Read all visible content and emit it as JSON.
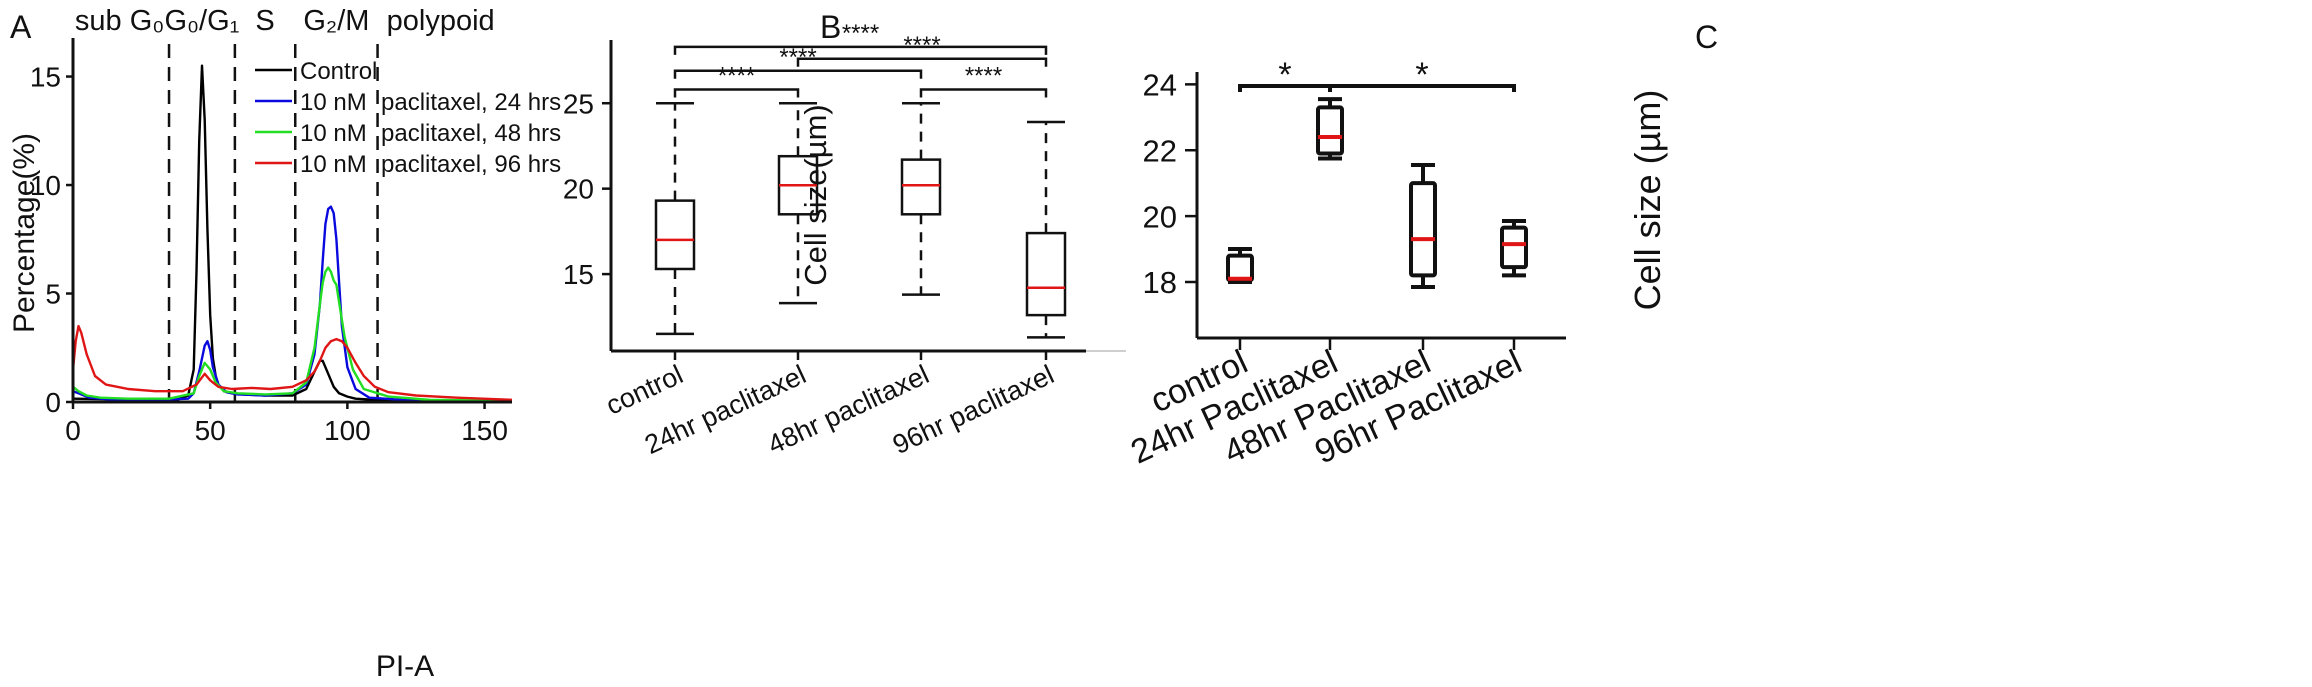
{
  "figure": {
    "panels": [
      {
        "letter": "A"
      },
      {
        "letter": "B"
      },
      {
        "letter": "C"
      }
    ]
  },
  "chart_data": [
    {
      "id": "A",
      "type": "line",
      "title": "",
      "xlabel": "PI-A",
      "ylabel": "Percentage(%)",
      "xlim": [
        0,
        160
      ],
      "ylim": [
        0,
        16.5
      ],
      "xticks": [
        0,
        50,
        100,
        150
      ],
      "yticks": [
        0,
        5,
        10,
        15
      ],
      "grid": false,
      "legend_position": "top-center",
      "phase_boundaries": [
        35,
        59,
        81,
        111
      ],
      "phases": [
        {
          "label": "sub G₀",
          "center": 17
        },
        {
          "label": "G₀/G₁",
          "center": 47
        },
        {
          "label": "S",
          "center": 70
        },
        {
          "label": "G₂/M",
          "center": 96
        },
        {
          "label": "polypoid",
          "center": 134
        }
      ],
      "series": [
        {
          "name": "Control",
          "color": "#000000",
          "x": [
            0,
            30,
            38,
            42,
            44,
            45,
            46,
            47,
            48,
            49,
            50,
            51,
            52,
            53,
            55,
            58,
            62,
            70,
            80,
            85,
            88,
            90,
            91,
            93,
            95,
            97,
            100,
            103,
            110,
            130,
            160
          ],
          "values": [
            0.15,
            0.1,
            0.1,
            0.3,
            1.5,
            6,
            12,
            15.5,
            13,
            8,
            4,
            2,
            1.2,
            0.8,
            0.5,
            0.4,
            0.35,
            0.3,
            0.3,
            0.6,
            1.4,
            1.9,
            1.9,
            1.3,
            0.7,
            0.4,
            0.25,
            0.15,
            0.1,
            0.05,
            0.05
          ]
        },
        {
          "name": "10 nM",
          "label": "paclitaxel, 24 hrs",
          "color": "#0a0adf",
          "x": [
            0,
            2,
            6,
            15,
            30,
            42,
            44,
            46,
            48,
            49,
            50,
            51,
            53,
            56,
            60,
            70,
            80,
            85,
            88,
            90,
            91,
            92,
            93,
            94,
            95,
            96,
            97,
            98,
            100,
            103,
            108,
            120,
            140,
            160
          ],
          "values": [
            0.5,
            0.4,
            0.2,
            0.1,
            0.1,
            0.15,
            0.4,
            1.4,
            2.6,
            2.8,
            2.4,
            1.6,
            0.8,
            0.45,
            0.35,
            0.3,
            0.4,
            0.8,
            2.2,
            4.5,
            6.5,
            8.2,
            8.9,
            9.0,
            8.7,
            7.5,
            5.5,
            3.5,
            1.6,
            0.6,
            0.2,
            0.1,
            0.05,
            0.05
          ]
        },
        {
          "name": "10 nM",
          "label": "paclitaxel, 48 hrs",
          "color": "#22dd22",
          "x": [
            0,
            2,
            5,
            10,
            20,
            35,
            44,
            46,
            48,
            50,
            52,
            55,
            60,
            70,
            80,
            85,
            88,
            90,
            91,
            92,
            93,
            94,
            95,
            96,
            97,
            99,
            102,
            106,
            115,
            130,
            160
          ],
          "values": [
            0.7,
            0.5,
            0.3,
            0.2,
            0.15,
            0.15,
            0.4,
            1.2,
            1.8,
            1.5,
            0.9,
            0.5,
            0.4,
            0.35,
            0.4,
            0.9,
            2.5,
            4.5,
            5.5,
            6.0,
            6.2,
            6.0,
            5.6,
            5.4,
            4.6,
            3.0,
            1.5,
            0.6,
            0.25,
            0.1,
            0.05
          ]
        },
        {
          "name": "10 nM",
          "label": "paclitaxel, 96 hrs",
          "color": "#e01616",
          "x": [
            0,
            1,
            2,
            3,
            5,
            8,
            12,
            20,
            30,
            40,
            45,
            48,
            50,
            53,
            58,
            65,
            72,
            80,
            85,
            88,
            90,
            92,
            94,
            96,
            98,
            100,
            103,
            106,
            110,
            115,
            125,
            140,
            160
          ],
          "values": [
            1.5,
            2.8,
            3.5,
            3.2,
            2.2,
            1.2,
            0.8,
            0.6,
            0.5,
            0.5,
            0.8,
            1.3,
            1.0,
            0.7,
            0.6,
            0.65,
            0.6,
            0.7,
            1.0,
            1.4,
            1.9,
            2.5,
            2.8,
            2.9,
            2.8,
            2.5,
            1.8,
            1.2,
            0.7,
            0.45,
            0.3,
            0.2,
            0.1
          ]
        }
      ]
    },
    {
      "id": "B",
      "type": "box",
      "title": "",
      "xlabel": "",
      "ylabel": "Cell size(µm)",
      "ylim": [
        10.5,
        28.7
      ],
      "yticks": [
        15,
        20,
        25
      ],
      "grid": false,
      "categories": [
        "control",
        "24hr paclitaxel",
        "48hr paclitaxel",
        "96hr paclitaxel"
      ],
      "boxes": [
        {
          "min": 11.5,
          "q1": 15.3,
          "median": 17.0,
          "q3": 19.3,
          "max": 25.0
        },
        {
          "min": 13.3,
          "q1": 18.5,
          "median": 20.2,
          "q3": 21.9,
          "max": 25.0
        },
        {
          "min": 13.8,
          "q1": 18.5,
          "median": 20.2,
          "q3": 21.7,
          "max": 25.0
        },
        {
          "min": 11.3,
          "q1": 12.6,
          "median": 14.2,
          "q3": 17.4,
          "max": 23.9
        }
      ],
      "significance": [
        {
          "from": 0,
          "to": 1,
          "y": 25.8,
          "label": "****"
        },
        {
          "from": 0,
          "to": 2,
          "y": 26.9,
          "label": "****"
        },
        {
          "from": 1,
          "to": 3,
          "y": 27.6,
          "label": "****"
        },
        {
          "from": 0,
          "to": 3,
          "y": 28.3,
          "label": "****"
        },
        {
          "from": 2,
          "to": 3,
          "y": 25.8,
          "label": "****"
        }
      ]
    },
    {
      "id": "C",
      "type": "box",
      "title": "",
      "xlabel": "",
      "ylabel": "Cell size (µm)",
      "ylim": [
        16.3,
        24.8
      ],
      "yticks": [
        18,
        20,
        22,
        24
      ],
      "grid": false,
      "categories": [
        "control",
        "24hr Paclitaxel",
        "48hr Paclitaxel",
        "96hr Paclitaxel"
      ],
      "boxes": [
        {
          "min": 18.0,
          "q1": 18.05,
          "median": 18.1,
          "q3": 18.8,
          "max": 19.0
        },
        {
          "min": 21.75,
          "q1": 21.9,
          "median": 22.4,
          "q3": 23.3,
          "max": 23.55
        },
        {
          "min": 17.85,
          "q1": 18.2,
          "median": 19.3,
          "q3": 21.0,
          "max": 21.55
        },
        {
          "min": 18.2,
          "q1": 18.45,
          "median": 19.15,
          "q3": 19.65,
          "max": 19.85
        }
      ],
      "significance": [
        {
          "from": 0,
          "to": 1,
          "y": 23.95,
          "label": "*"
        },
        {
          "from": 1,
          "to": 3,
          "y": 23.95,
          "label": "*"
        }
      ]
    }
  ]
}
